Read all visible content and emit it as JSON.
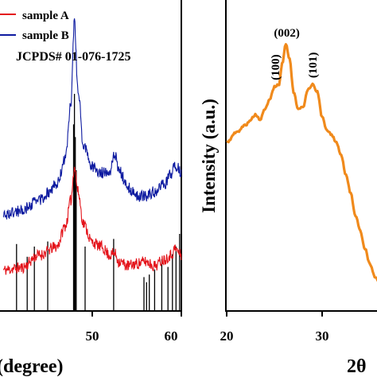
{
  "chart_data": [
    {
      "type": "line",
      "panel": "left",
      "xlabel_visible": "(degree)",
      "xlim": [
        40,
        60
      ],
      "x_ticks": [
        50,
        60
      ],
      "x_tick_labels": [
        "50",
        "60"
      ],
      "legend": {
        "placement": "top-left",
        "entries": [
          {
            "label": "sample A",
            "color": "#e4141b"
          },
          {
            "label": "sample B",
            "color": "#0d1aa0"
          }
        ],
        "reference_label": "JCPDS# 01-076-1725",
        "reference_color": "#e3127d"
      },
      "series": [
        {
          "name": "sample A",
          "color": "#e4141b",
          "x": [
            40,
            42,
            44,
            46,
            47,
            47.6,
            48,
            48.4,
            49,
            50,
            51,
            52,
            52.5,
            53,
            54,
            55,
            56,
            57,
            58,
            58.8,
            59.3,
            60
          ],
          "y": [
            13.9,
            14.0,
            14.6,
            15.0,
            16.0,
            17.2,
            18.8,
            17.6,
            16.1,
            15.2,
            15.0,
            14.6,
            14.7,
            14.3,
            14.1,
            14.2,
            14.3,
            14.1,
            14.4,
            14.6,
            14.9,
            14.6
          ]
        },
        {
          "name": "sample B",
          "color": "#0d1aa0",
          "x": [
            40,
            42,
            44,
            46,
            47,
            47.6,
            48,
            48.4,
            49,
            50,
            51,
            52,
            52.5,
            53,
            54,
            55,
            56,
            57,
            58,
            58.8,
            59.3,
            60
          ],
          "y": [
            16.5,
            16.7,
            17.2,
            17.9,
            19.2,
            21.8,
            25.6,
            22.4,
            19.8,
            18.8,
            18.5,
            18.6,
            19.4,
            18.6,
            17.8,
            17.4,
            17.4,
            17.6,
            17.9,
            18.4,
            18.9,
            18.5
          ]
        }
      ],
      "reference_peaks": {
        "x": [
          41.5,
          42.7,
          43.5,
          45.0,
          47.9,
          48.0,
          48.1,
          48.2,
          49.2,
          52.4,
          55.8,
          56.1,
          56.4,
          57.0,
          57.8,
          58.5,
          59.0,
          59.4,
          59.8
        ],
        "intensity": [
          0.26,
          0.21,
          0.25,
          0.27,
          0.73,
          0.85,
          0.68,
          0.55,
          0.25,
          0.28,
          0.13,
          0.11,
          0.14,
          0.16,
          0.2,
          0.17,
          0.22,
          0.25,
          0.3
        ]
      }
    },
    {
      "type": "line",
      "panel": "right",
      "ylabel": "Intensity (a.u.)",
      "xlabel_visible": "2θ",
      "xlim": [
        20,
        40
      ],
      "x_ticks": [
        20,
        30
      ],
      "x_tick_labels": [
        "20",
        "30"
      ],
      "grid": false,
      "series": [
        {
          "color": "#f08a1c",
          "x": [
            20,
            21,
            22,
            22.5,
            23,
            23.5,
            24,
            24.5,
            25,
            25.5,
            25.8,
            26.2,
            26.6,
            27,
            27.5,
            28,
            28.5,
            29,
            29.5,
            30,
            30.5,
            31,
            31.5,
            32,
            32.5,
            33,
            33.5,
            34,
            34.5,
            35,
            35.5,
            36,
            36.5,
            37,
            37.5,
            38
          ],
          "y": [
            0.6,
            0.64,
            0.67,
            0.69,
            0.71,
            0.69,
            0.73,
            0.77,
            0.82,
            0.83,
            0.91,
            0.99,
            0.93,
            0.8,
            0.73,
            0.74,
            0.81,
            0.83,
            0.8,
            0.7,
            0.65,
            0.63,
            0.6,
            0.55,
            0.47,
            0.4,
            0.31,
            0.25,
            0.18,
            0.12,
            0.07,
            0.05,
            0.03,
            0.02,
            0.01,
            0.0
          ]
        }
      ],
      "peak_labels": [
        {
          "x": 25.1,
          "text": "(100)"
        },
        {
          "x": 26.3,
          "text": "(002)"
        },
        {
          "x": 29.0,
          "text": "(101)"
        }
      ]
    }
  ]
}
